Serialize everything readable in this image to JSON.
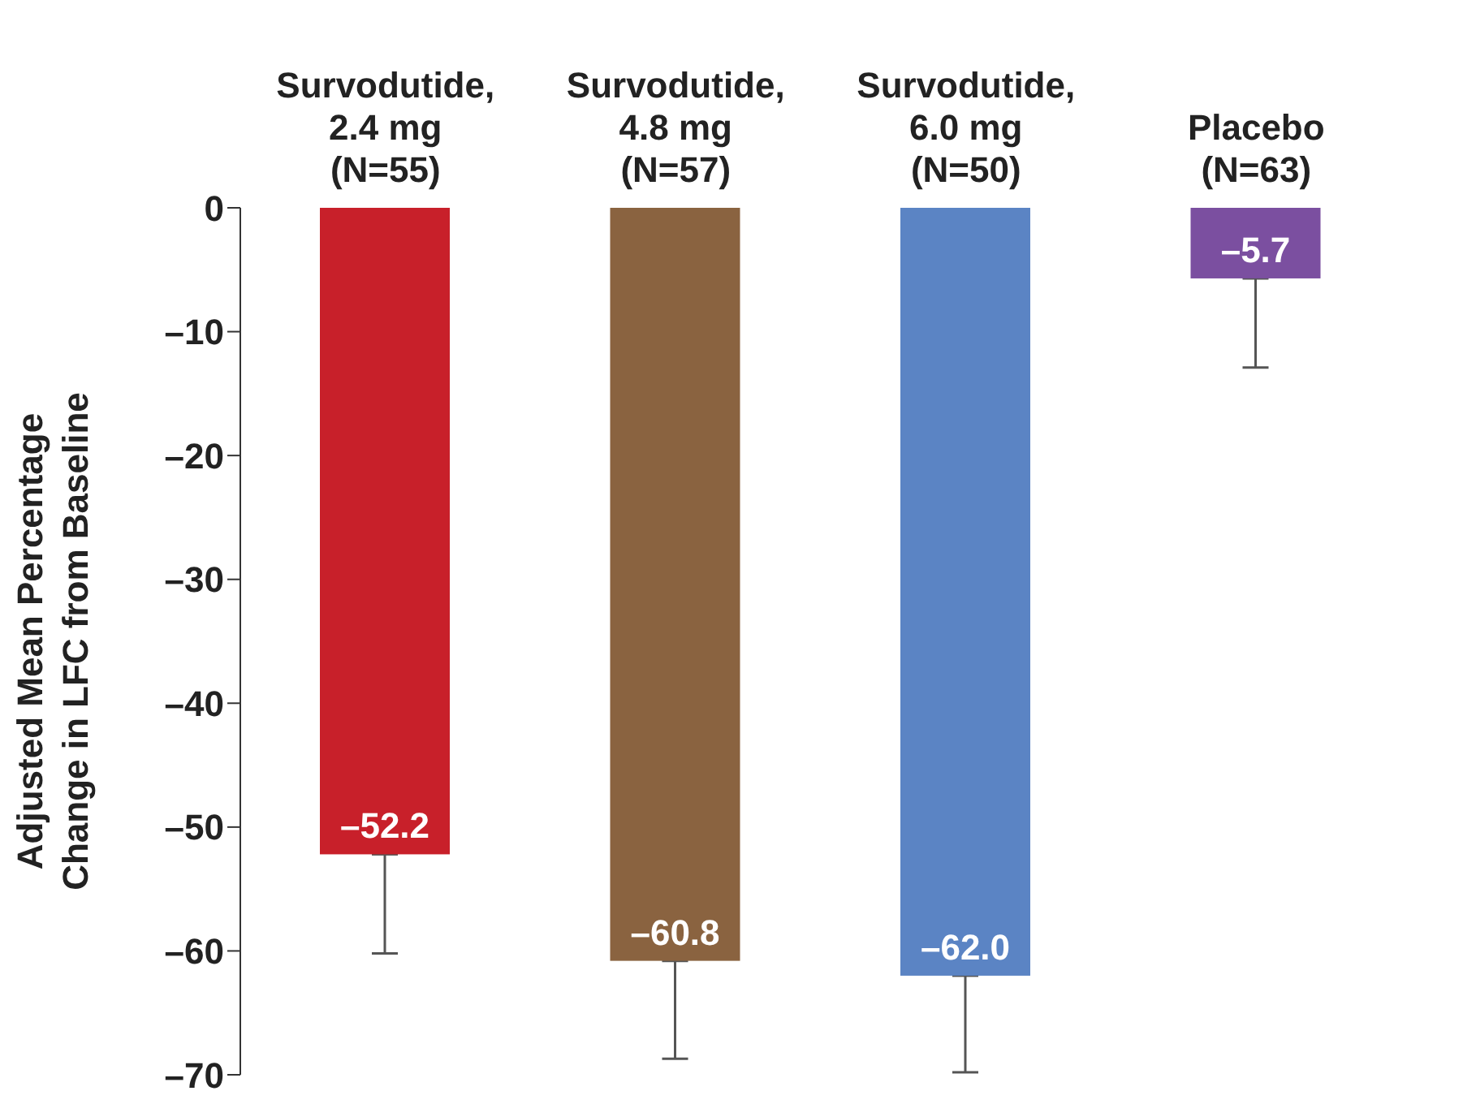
{
  "chart_data": {
    "type": "bar",
    "ylabel": "Adjusted Mean Percentage Change in LFC from Baseline",
    "categories": [
      "Survodutide,\n2.4 mg\n(N=55)",
      "Survodutide,\n4.8 mg\n(N=57)",
      "Survodutide,\n6.0 mg\n(N=50)",
      "Placebo\n(N=63)"
    ],
    "values": [
      -52.2,
      -60.8,
      -62.0,
      -5.7
    ],
    "colors": [
      "#c8202a",
      "#8a6340",
      "#5b84c4",
      "#7b4fa0"
    ],
    "errors": [
      [
        -60.2,
        -52.2
      ],
      [
        -68.7,
        -60.8
      ],
      [
        -69.8,
        -62.0
      ],
      [
        -12.9,
        -5.7
      ]
    ],
    "value_labels": [
      "–52.2",
      "–60.8",
      "–62.0",
      "–5.7"
    ],
    "ylim": [
      -70,
      0
    ],
    "yticks": [
      0,
      {
        "value": -10,
        "label": "–10"
      },
      {
        "value": -20,
        "label": "–20"
      },
      {
        "value": -30,
        "label": "–30"
      },
      {
        "value": -40,
        "label": "–40"
      },
      {
        "value": -50,
        "label": "–50"
      },
      {
        "value": -60,
        "label": "–60"
      },
      {
        "value": -70,
        "label": "–70"
      }
    ],
    "grid": false,
    "legend": false
  }
}
